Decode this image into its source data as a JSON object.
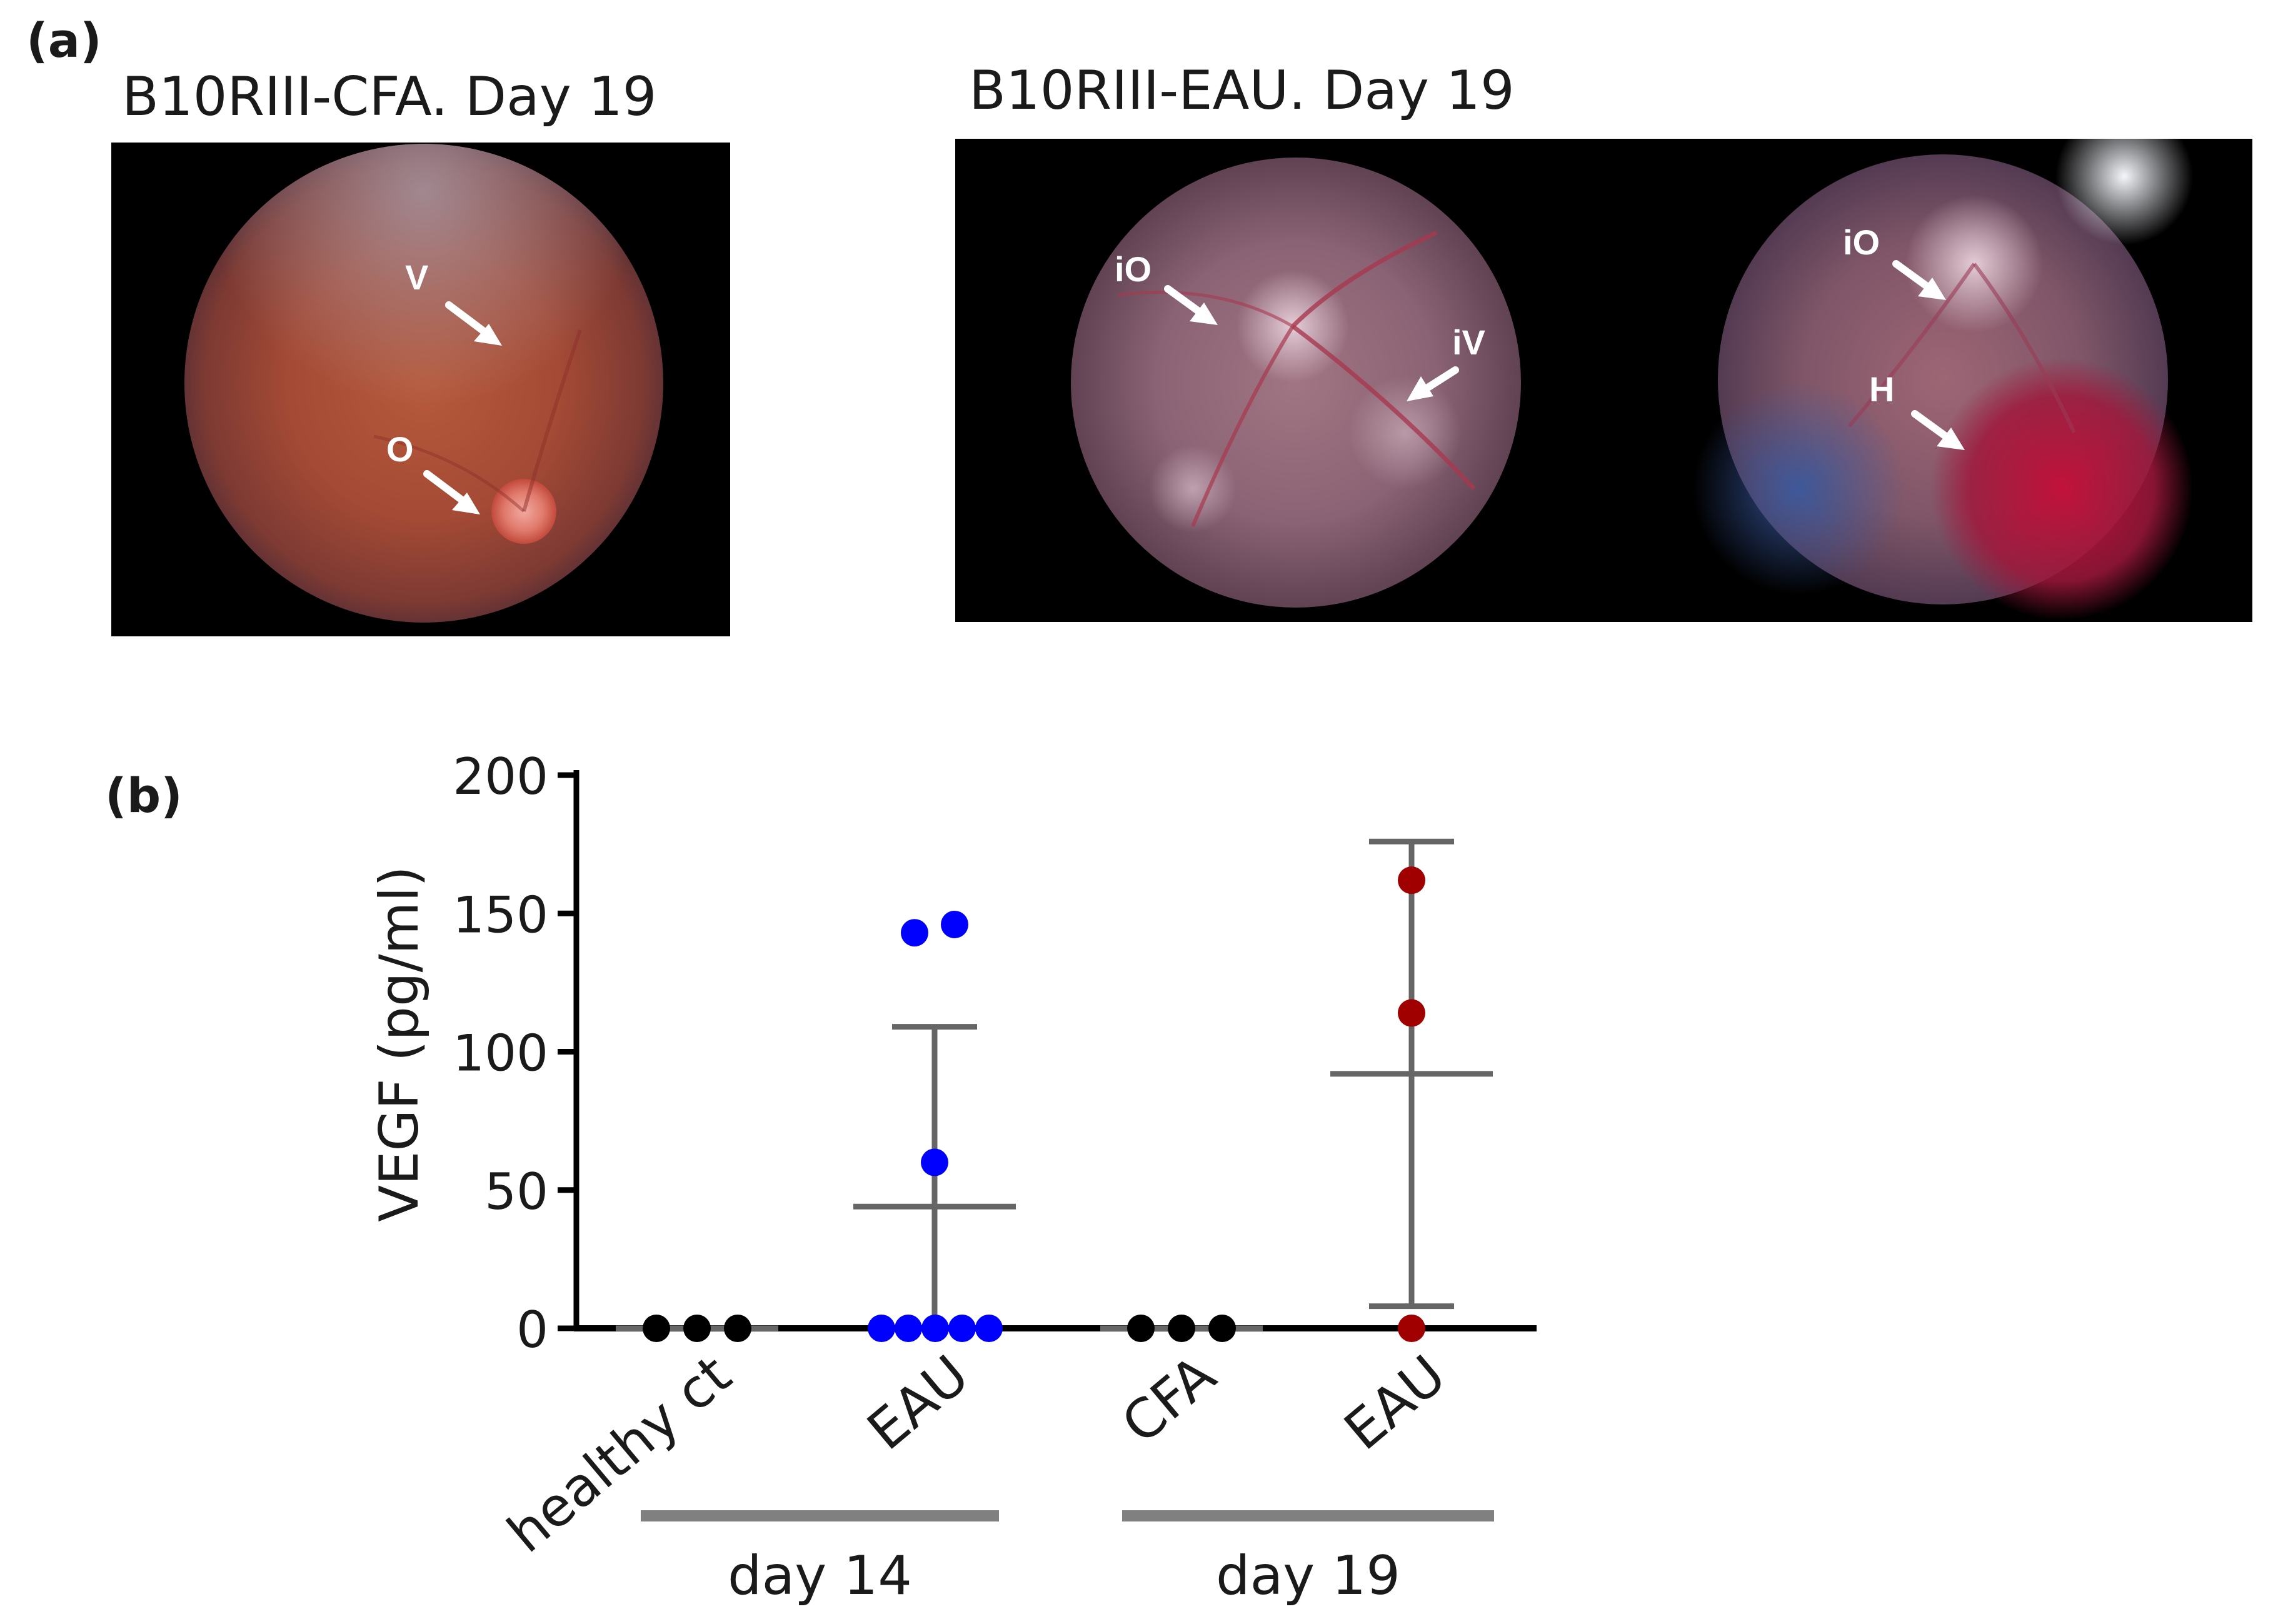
{
  "panel_a": {
    "label": "(a)",
    "image_left": {
      "title": "B10RIII-CFA. Day 19",
      "markers": [
        "V",
        "O"
      ]
    },
    "image_right": {
      "title": "B10RIII-EAU. Day 19",
      "fundus_1_markers": [
        "iO",
        "iV"
      ],
      "fundus_2_markers": [
        "iO",
        "H"
      ]
    }
  },
  "panel_b": {
    "label": "(b)"
  },
  "chart_data": {
    "type": "scatter",
    "title": "",
    "ylabel": "VEGF (pg/ml)",
    "ylim": [
      0,
      200
    ],
    "yticks": [
      0,
      50,
      100,
      150,
      200
    ],
    "categories": [
      "healthy ct",
      "EAU",
      "CFA",
      "EAU"
    ],
    "groups": [
      {
        "label": "day 14",
        "categories": [
          "healthy ct",
          "EAU"
        ]
      },
      {
        "label": "day 19",
        "categories": [
          "CFA",
          "EAU"
        ]
      }
    ],
    "series": [
      {
        "name": "healthy ct (day 14)",
        "color": "#000000",
        "values": [
          0,
          0,
          0
        ],
        "mean": 0,
        "sd_lower": 0,
        "sd_upper": 0
      },
      {
        "name": "EAU (day 14)",
        "color": "#0000ff",
        "values": [
          143,
          146,
          60,
          0,
          0,
          0,
          0,
          0
        ],
        "mean": 44,
        "sd_lower": 0,
        "sd_upper": 109
      },
      {
        "name": "CFA (day 19)",
        "color": "#000000",
        "values": [
          0,
          0,
          0
        ],
        "mean": 0,
        "sd_lower": 0,
        "sd_upper": 0
      },
      {
        "name": "EAU (day 19)",
        "color": "#a00000",
        "values": [
          162,
          114,
          0
        ],
        "mean": 92,
        "sd_lower": 8,
        "sd_upper": 176
      }
    ]
  },
  "colors": {
    "error_bar": "#666666",
    "axis": "#000000",
    "group_bar": "#808080"
  }
}
